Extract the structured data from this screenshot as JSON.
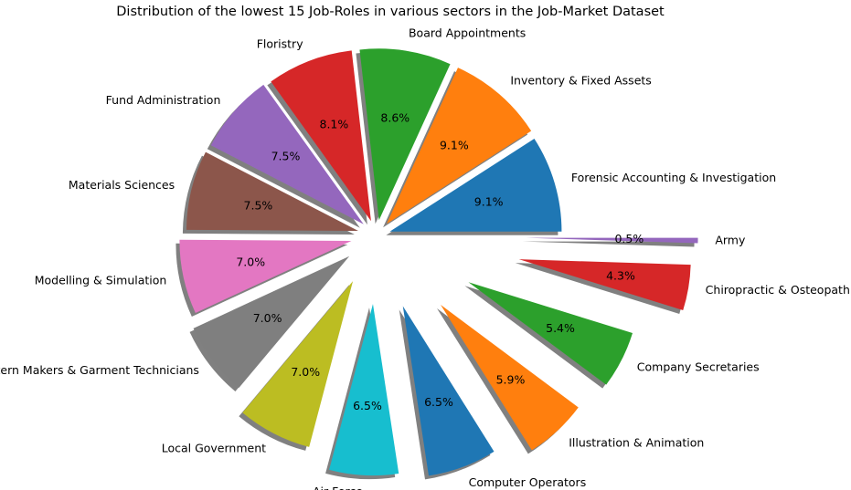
{
  "chart_data": {
    "type": "pie",
    "title": "Distribution of the lowest 15 Job-Roles in various sectors in the Job-Market Dataset",
    "categories": [
      "Forensic Accounting & Investigation",
      "Inventory & Fixed Assets",
      "Board Appointments",
      "Floristry",
      "Fund Administration",
      "Materials Sciences",
      "Modelling & Simulation",
      "Pattern Makers & Garment Technicians",
      "Local Government",
      "Air Force",
      "Computer Operators",
      "Illustration & Animation",
      "Company Secretaries",
      "Chiropractic & Osteopathic",
      "Army"
    ],
    "values": [
      9.1,
      9.1,
      8.6,
      8.1,
      7.5,
      7.5,
      7.0,
      7.0,
      7.0,
      6.5,
      6.5,
      5.9,
      5.4,
      4.3,
      0.5
    ],
    "value_labels": [
      "9.1%",
      "9.1%",
      "8.6%",
      "8.1%",
      "7.5%",
      "7.5%",
      "7.0%",
      "7.0%",
      "7.0%",
      "6.5%",
      "6.5%",
      "5.9%",
      "5.4%",
      "4.3%",
      "0.5%"
    ],
    "colors": [
      "#1f77b4",
      "#ff7f0e",
      "#2ca02c",
      "#d62728",
      "#9467bd",
      "#8c564b",
      "#e377c2",
      "#7f7f7f",
      "#bcbd22",
      "#17becf",
      "#1f77b4",
      "#ff7f0e",
      "#2ca02c",
      "#d62728",
      "#9467bd"
    ],
    "shadow": true
  }
}
